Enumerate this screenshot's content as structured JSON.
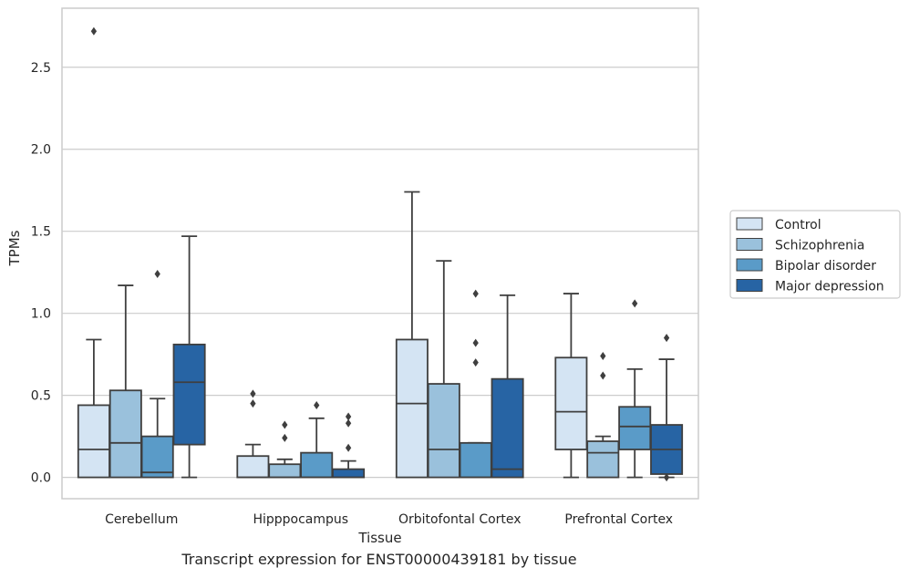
{
  "caption": "Transcript expression for ENST00000439181 by tissue",
  "chart_data": {
    "type": "box",
    "xlabel": "Tissue",
    "ylabel": "TPMs",
    "ylim": [
      -0.13,
      2.86
    ],
    "yticks": [
      0.0,
      0.5,
      1.0,
      1.5,
      2.0,
      2.5
    ],
    "ytick_labels": [
      "0.0",
      "0.5",
      "1.0",
      "1.5",
      "2.0",
      "2.5"
    ],
    "grid": true,
    "legend_position": "right",
    "categories": [
      "Cerebellum",
      "Hipppocampus",
      "Orbitofontal Cortex",
      "Prefrontal Cortex"
    ],
    "series": [
      {
        "name": "Control",
        "color": "#d4e4f3",
        "boxes": [
          {
            "whislo": 0.0,
            "q1": 0.0,
            "med": 0.17,
            "q3": 0.44,
            "whishi": 0.84,
            "fliers": []
          },
          {
            "whislo": 0.0,
            "q1": 0.0,
            "med": 0.0,
            "q3": 0.13,
            "whishi": 0.2,
            "fliers": [
              0.45,
              0.51
            ]
          },
          {
            "whislo": 0.0,
            "q1": 0.0,
            "med": 0.45,
            "q3": 0.84,
            "whishi": 1.74,
            "fliers": []
          },
          {
            "whislo": 0.0,
            "q1": 0.17,
            "med": 0.4,
            "q3": 0.73,
            "whishi": 1.12,
            "fliers": []
          }
        ]
      },
      {
        "name": "Schizophrenia",
        "color": "#9ac1dc",
        "boxes": [
          {
            "whislo": 0.0,
            "q1": 0.0,
            "med": 0.21,
            "q3": 0.53,
            "whishi": 1.17,
            "fliers": []
          },
          {
            "whislo": 0.0,
            "q1": 0.0,
            "med": 0.0,
            "q3": 0.08,
            "whishi": 0.11,
            "fliers": [
              0.24,
              0.32
            ]
          },
          {
            "whislo": 0.0,
            "q1": 0.0,
            "med": 0.17,
            "q3": 0.57,
            "whishi": 1.32,
            "fliers": []
          },
          {
            "whislo": 0.0,
            "q1": 0.0,
            "med": 0.15,
            "q3": 0.22,
            "whishi": 0.25,
            "fliers": [
              0.62,
              0.74
            ]
          }
        ]
      },
      {
        "name": "Bipolar disorder",
        "color": "#5a9bc8",
        "boxes": [
          {
            "whislo": 0.0,
            "q1": 0.0,
            "med": 0.03,
            "q3": 0.25,
            "whishi": 0.48,
            "fliers": [
              1.24
            ]
          },
          {
            "whislo": 0.0,
            "q1": 0.0,
            "med": 0.0,
            "q3": 0.15,
            "whishi": 0.36,
            "fliers": [
              0.44
            ]
          },
          {
            "whislo": 0.0,
            "q1": 0.0,
            "med": 0.0,
            "q3": 0.21,
            "whishi": 0.21,
            "fliers": [
              0.7,
              0.82,
              1.12
            ]
          },
          {
            "whislo": 0.0,
            "q1": 0.17,
            "med": 0.31,
            "q3": 0.43,
            "whishi": 0.66,
            "fliers": [
              1.06
            ]
          }
        ]
      },
      {
        "name": "Major depression",
        "color": "#2764a4",
        "boxes": [
          {
            "whislo": 0.0,
            "q1": 0.2,
            "med": 0.58,
            "q3": 0.81,
            "whishi": 1.47,
            "fliers": []
          },
          {
            "whislo": 0.0,
            "q1": 0.0,
            "med": 0.0,
            "q3": 0.05,
            "whishi": 0.1,
            "fliers": [
              0.18,
              0.33,
              0.37
            ]
          },
          {
            "whislo": 0.0,
            "q1": 0.0,
            "med": 0.05,
            "q3": 0.6,
            "whishi": 1.11,
            "fliers": []
          },
          {
            "whislo": 0.0,
            "q1": 0.02,
            "med": 0.17,
            "q3": 0.32,
            "whishi": 0.72,
            "fliers": [
              0.0,
              0.85
            ]
          }
        ]
      }
    ],
    "extra_outliers": [
      {
        "category": "Cerebellum",
        "series": "Control",
        "value": 2.72
      }
    ]
  }
}
